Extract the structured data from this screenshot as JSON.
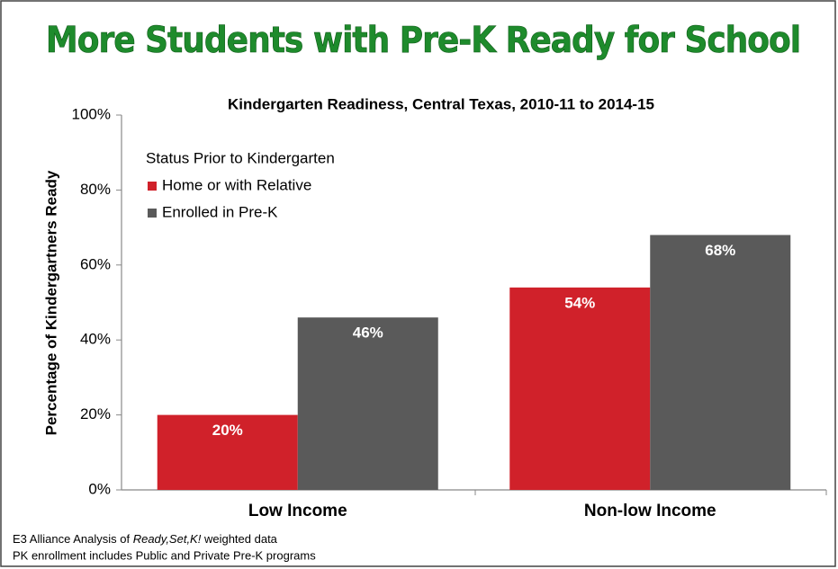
{
  "chart_data": {
    "type": "bar",
    "title": "More Students with Pre-K Ready for School",
    "subtitle": "Kindergarten Readiness, Central Texas, 2010-11 to 2014-15",
    "y_label": "Percentage of Kindergartners  Ready",
    "legend_title": "Status Prior to Kindergarten",
    "categories": [
      "Low Income",
      "Non-low Income"
    ],
    "series": [
      {
        "name": "Home or with Relative",
        "color": "#d0212a",
        "values": [
          20,
          54
        ],
        "value_labels": [
          "20%",
          "54%"
        ]
      },
      {
        "name": "Enrolled in Pre-K",
        "color": "#5a5a5a",
        "values": [
          46,
          68
        ],
        "value_labels": [
          "46%",
          "68%"
        ]
      }
    ],
    "ylim": [
      0,
      100
    ],
    "yticks": [
      {
        "value": 0,
        "label": "0%"
      },
      {
        "value": 20,
        "label": "20%"
      },
      {
        "value": 40,
        "label": "40%"
      },
      {
        "value": 60,
        "label": "60%"
      },
      {
        "value": 80,
        "label": "80%"
      },
      {
        "value": 100,
        "label": "100%"
      }
    ],
    "footnotes": [
      [
        "E3 Alliance Analysis of ",
        "Ready,Set,K!",
        " weighted data"
      ],
      [
        "PK enrollment includes Public and Private Pre-K programs"
      ]
    ]
  }
}
